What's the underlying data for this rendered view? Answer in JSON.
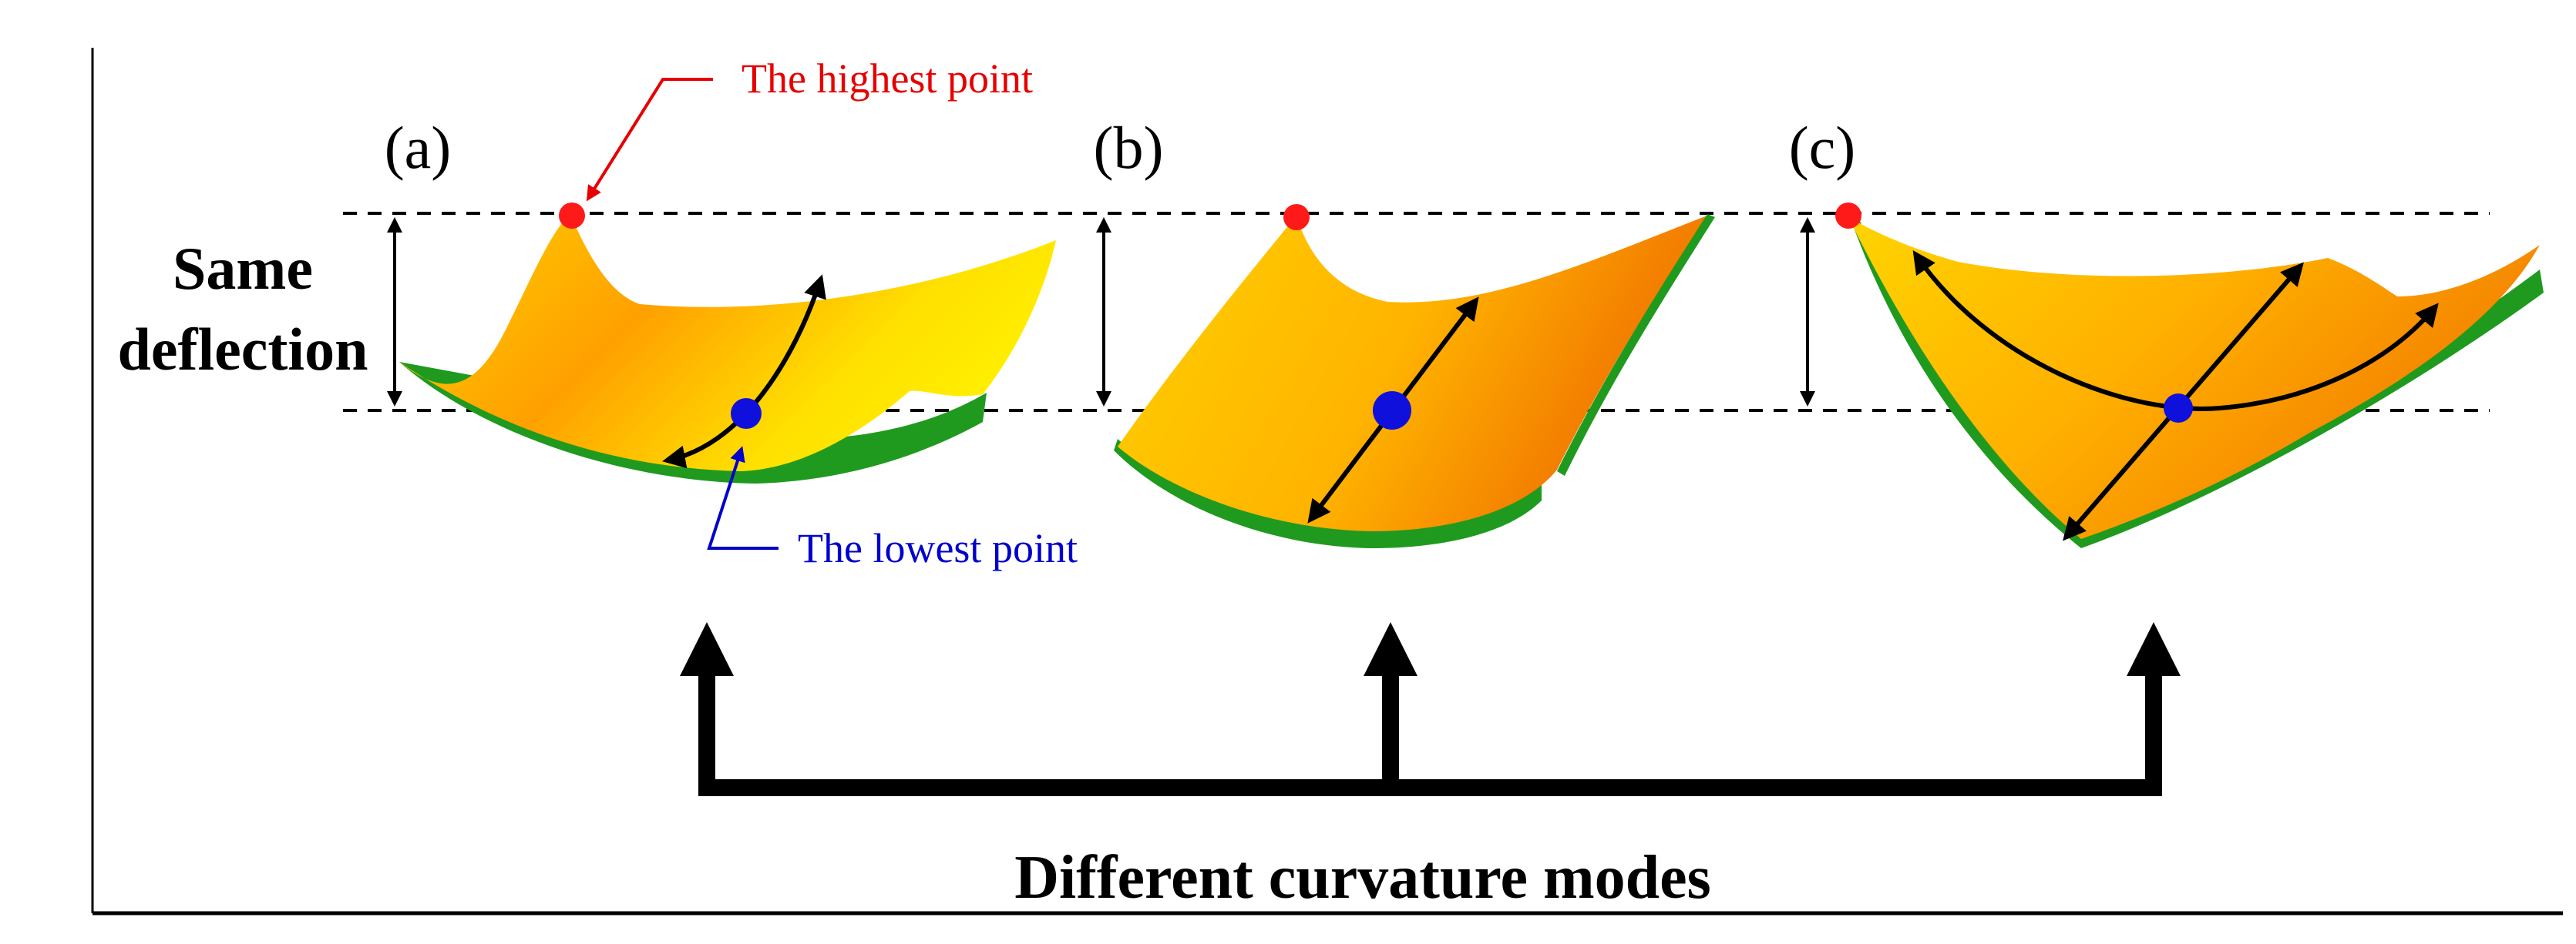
{
  "panels": [
    {
      "label": "(a)"
    },
    {
      "label": "(b)"
    },
    {
      "label": "(c)"
    }
  ],
  "labels": {
    "same_deflection_line1": "Same",
    "same_deflection_line2": "deflection",
    "highest_point": "The highest point",
    "lowest_point": "The lowest point",
    "bottom_caption": "Different curvature modes"
  },
  "colors": {
    "highest_point": "#ff1a1a",
    "lowest_point": "#1010dd",
    "highest_label": "#e60000",
    "lowest_label": "#0000cc",
    "surface_light": "#ffe600",
    "surface_mid": "#ffb000",
    "surface_dark": "#f07800",
    "edge_green": "#1f9a1f",
    "arrow_black": "#000000"
  }
}
